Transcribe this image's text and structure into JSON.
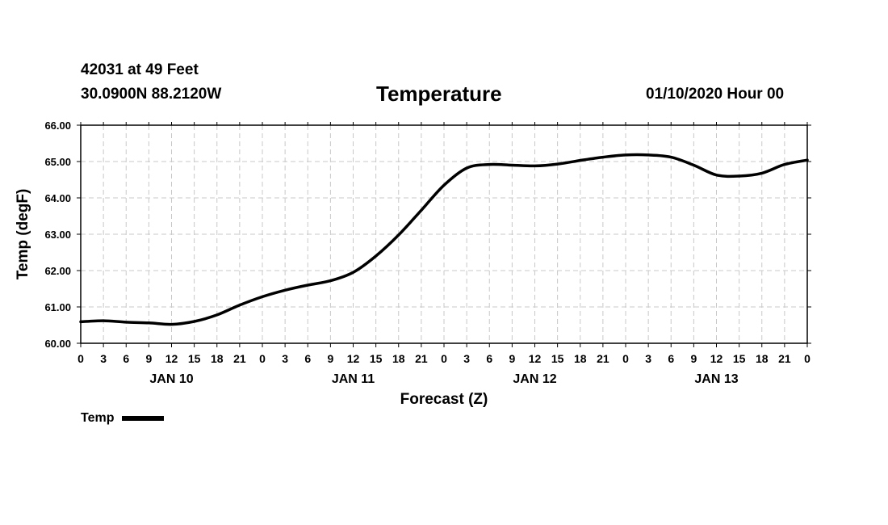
{
  "header": {
    "station": "42031 at 49 Feet",
    "location": "30.0900N 88.2120W",
    "title": "Temperature",
    "run_time": "01/10/2020 Hour 00"
  },
  "chart_data": {
    "type": "line",
    "title": "Temperature",
    "xlabel": "Forecast (Z)",
    "ylabel": "Temp (degF)",
    "ylim": [
      60,
      66
    ],
    "y_ticks": [
      "60.00",
      "61.00",
      "62.00",
      "63.00",
      "64.00",
      "65.00",
      "66.00"
    ],
    "x_range_hours": [
      0,
      96
    ],
    "x_tick_labels": [
      "0",
      "3",
      "6",
      "9",
      "12",
      "15",
      "18",
      "21",
      "0",
      "3",
      "6",
      "9",
      "12",
      "15",
      "18",
      "21",
      "0",
      "3",
      "6",
      "9",
      "12",
      "15",
      "18",
      "21",
      "0",
      "3",
      "6",
      "9",
      "12",
      "15",
      "18",
      "21",
      "0"
    ],
    "day_labels": [
      {
        "label": "JAN 10",
        "hour": 12
      },
      {
        "label": "JAN 11",
        "hour": 36
      },
      {
        "label": "JAN 12",
        "hour": 60
      },
      {
        "label": "JAN 13",
        "hour": 84
      }
    ],
    "grid": true,
    "legend_position": "bottom-left",
    "series": [
      {
        "name": "Temp",
        "x": [
          0,
          3,
          6,
          9,
          12,
          15,
          18,
          21,
          24,
          27,
          30,
          33,
          36,
          39,
          42,
          45,
          48,
          51,
          54,
          57,
          60,
          63,
          66,
          69,
          72,
          75,
          78,
          81,
          84,
          87,
          90,
          93,
          96
        ],
        "values": [
          60.59,
          60.62,
          60.58,
          60.56,
          60.52,
          60.6,
          60.78,
          61.05,
          61.28,
          61.46,
          61.6,
          61.72,
          61.95,
          62.4,
          62.98,
          63.66,
          64.35,
          64.82,
          64.92,
          64.9,
          64.88,
          64.93,
          65.03,
          65.12,
          65.18,
          65.18,
          65.12,
          64.9,
          64.63,
          64.6,
          64.68,
          64.92,
          65.04
        ]
      }
    ]
  }
}
